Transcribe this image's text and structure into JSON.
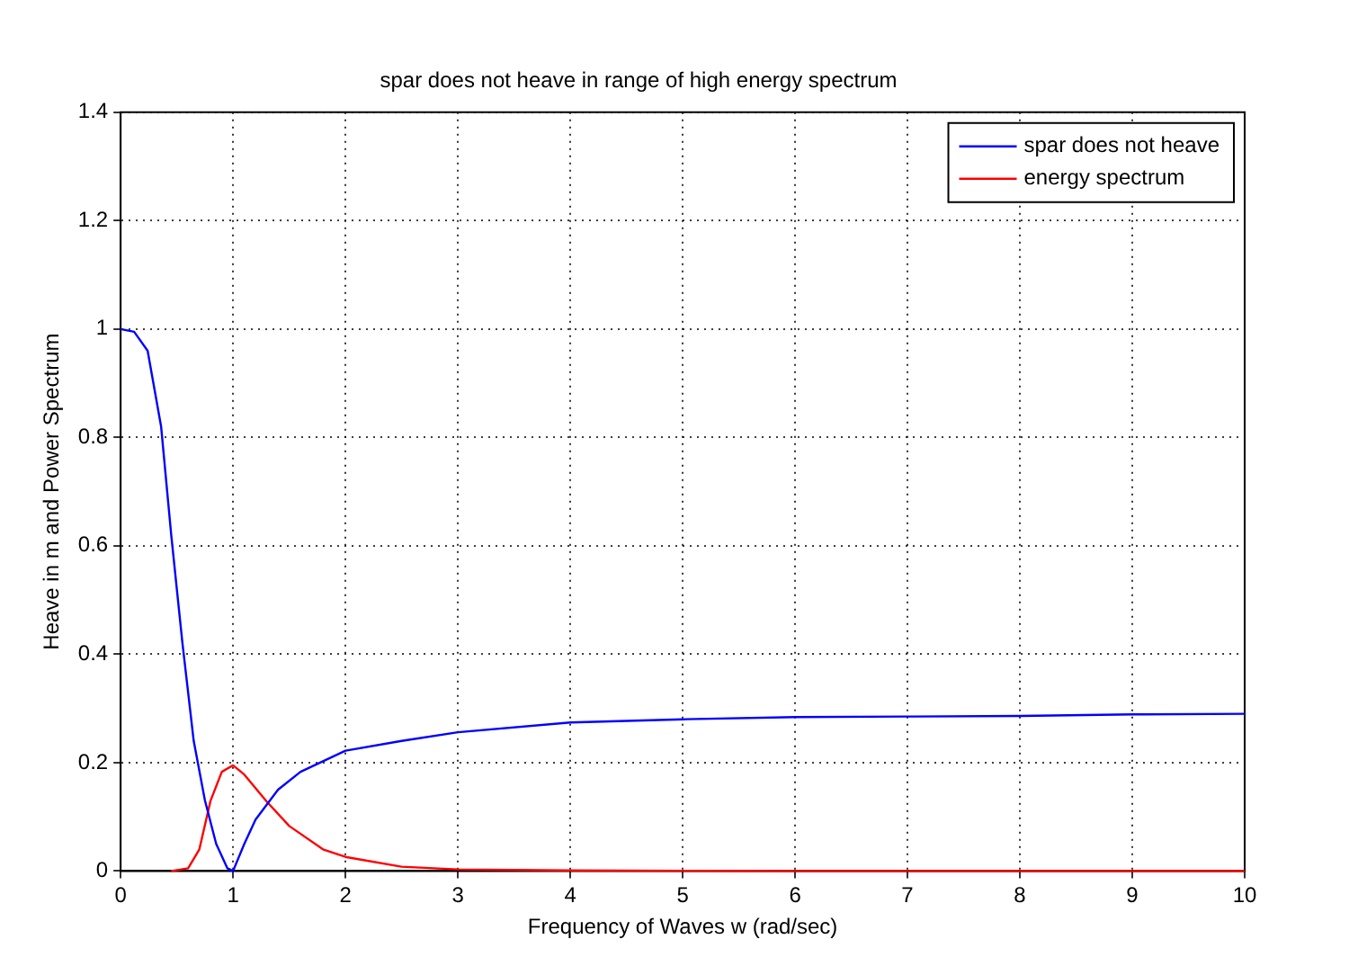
{
  "chart_data": {
    "type": "line",
    "title": "spar does not heave in range of high energy spectrum",
    "xlabel": "Frequency of Waves w (rad/sec)",
    "ylabel": "Heave in m and Power Spectrum",
    "xlim": [
      0,
      10
    ],
    "ylim": [
      0,
      1.4
    ],
    "xticks": [
      0,
      1,
      2,
      3,
      4,
      5,
      6,
      7,
      8,
      9,
      10
    ],
    "yticks": [
      0,
      0.2,
      0.4,
      0.6,
      0.8,
      1,
      1.2,
      1.4
    ],
    "grid": true,
    "legend": "top right",
    "line_style": "solid",
    "marker": "none",
    "series": [
      {
        "name": "spar does not heave",
        "color": "#0000ff",
        "x": [
          0,
          0.12,
          0.24,
          0.36,
          0.45,
          0.55,
          0.65,
          0.75,
          0.85,
          0.95,
          1.0,
          1.1,
          1.2,
          1.4,
          1.6,
          2.0,
          2.5,
          3,
          4,
          5,
          6,
          7,
          8,
          9,
          10
        ],
        "values": [
          1.0,
          0.995,
          0.96,
          0.82,
          0.62,
          0.42,
          0.24,
          0.13,
          0.05,
          0.005,
          0,
          0.05,
          0.095,
          0.15,
          0.183,
          0.222,
          0.24,
          0.256,
          0.274,
          0.28,
          0.284,
          0.285,
          0.286,
          0.289,
          0.29
        ]
      },
      {
        "name": "energy spectrum",
        "color": "#ff0000",
        "x": [
          0.45,
          0.6,
          0.7,
          0.8,
          0.9,
          1.0,
          1.1,
          1.3,
          1.5,
          1.8,
          2.0,
          2.5,
          3,
          4,
          6,
          8,
          10
        ],
        "values": [
          0,
          0.005,
          0.04,
          0.13,
          0.183,
          0.195,
          0.178,
          0.128,
          0.083,
          0.04,
          0.026,
          0.008,
          0.003,
          0.001,
          0,
          0,
          0
        ]
      }
    ]
  }
}
